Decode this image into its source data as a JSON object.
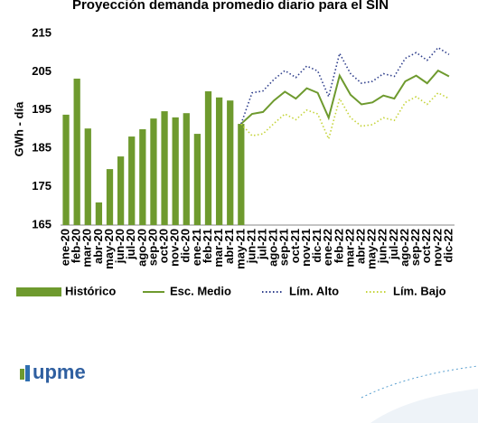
{
  "chart_data": {
    "type": "bar",
    "title": "Proyección demanda promedio diario para el SIN",
    "y_label": "GWh - día",
    "categories": [
      "ene-20",
      "feb-20",
      "mar-20",
      "abr-20",
      "may-20",
      "jun-20",
      "jul-20",
      "ago-20",
      "sep-20",
      "oct-20",
      "nov-20",
      "dic-20",
      "ene-21",
      "feb-21",
      "mar-21",
      "abr-21",
      "may-21",
      "jun-21",
      "jul-21",
      "ago-21",
      "sep-21",
      "oct-21",
      "nov-21",
      "dic-21",
      "ene-22",
      "feb-22",
      "mar-22",
      "abr-22",
      "may-22",
      "jun-22",
      "jul-22",
      "ago-22",
      "sep-22",
      "oct-22",
      "nov-22",
      "dic-22"
    ],
    "series": [
      {
        "name": "Histórico",
        "type": "bar",
        "color": "#6e9a2e",
        "values": [
          193.8,
          203.2,
          190.2,
          170.9,
          179.6,
          182.9,
          188.1,
          190.0,
          192.8,
          194.7,
          193.1,
          194.2,
          188.8,
          199.9,
          198.3,
          197.5,
          191.4,
          null,
          null,
          null,
          null,
          null,
          null,
          null,
          null,
          null,
          null,
          null,
          null,
          null,
          null,
          null,
          null,
          null,
          null,
          null
        ]
      },
      {
        "name": "Esc. Medio",
        "type": "line",
        "style": "solid",
        "color": "#6e9a2e",
        "values": [
          null,
          null,
          null,
          null,
          null,
          null,
          null,
          null,
          null,
          null,
          null,
          null,
          null,
          null,
          null,
          null,
          191.4,
          194.0,
          194.5,
          197.5,
          199.8,
          198.0,
          200.7,
          199.5,
          193.0,
          204.0,
          199.0,
          196.5,
          197.0,
          198.8,
          198.0,
          202.5,
          204.0,
          202.0,
          205.3,
          203.8
        ]
      },
      {
        "name": "Lím. Alto",
        "type": "line",
        "style": "dotted",
        "color": "#2f3f8c",
        "values": [
          null,
          null,
          null,
          null,
          null,
          null,
          null,
          null,
          null,
          null,
          null,
          null,
          null,
          null,
          null,
          null,
          191.4,
          199.5,
          200.0,
          203.0,
          205.3,
          203.5,
          206.5,
          205.2,
          198.5,
          209.8,
          204.5,
          202.0,
          202.5,
          204.5,
          203.8,
          208.5,
          210.0,
          208.0,
          211.3,
          209.5
        ]
      },
      {
        "name": "Lím. Bajo",
        "type": "line",
        "style": "dotted",
        "color": "#c5d43a",
        "values": [
          null,
          null,
          null,
          null,
          null,
          null,
          null,
          null,
          null,
          null,
          null,
          null,
          null,
          null,
          null,
          null,
          191.4,
          188.3,
          188.8,
          191.5,
          194.0,
          192.5,
          195.0,
          194.0,
          187.5,
          198.0,
          193.0,
          190.8,
          191.2,
          193.0,
          192.3,
          197.0,
          198.5,
          196.5,
          199.5,
          198.0
        ]
      }
    ],
    "ylim": [
      165,
      215
    ],
    "yticks": [
      165,
      175,
      185,
      195,
      205,
      215
    ],
    "grid": false
  },
  "logo": "upme"
}
